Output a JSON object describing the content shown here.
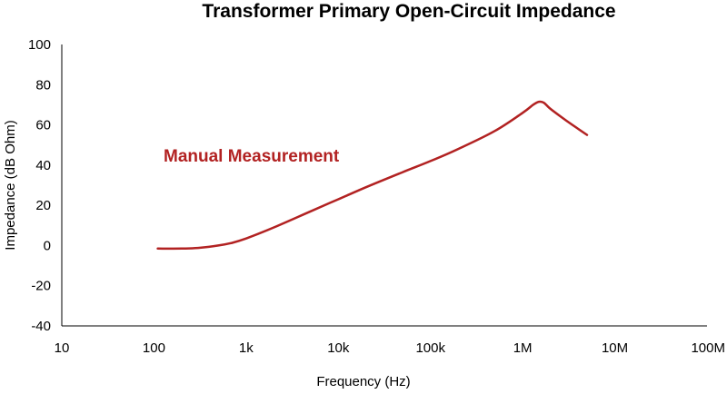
{
  "chart_data": {
    "type": "line",
    "title": "Transformer Primary Open-Circuit Impedance",
    "xlabel": "Frequency (Hz)",
    "ylabel": "Impedance (dB Ohm)",
    "x_scale": "log",
    "xlim": [
      10,
      100000000
    ],
    "ylim": [
      -40,
      100
    ],
    "x_ticks": [
      10,
      100,
      1000,
      10000,
      100000,
      1000000,
      10000000,
      100000000
    ],
    "x_tick_labels": [
      "10",
      "100",
      "1k",
      "10k",
      "100k",
      "1M",
      "10M",
      "100M"
    ],
    "y_ticks": [
      -40,
      -20,
      0,
      20,
      40,
      60,
      80,
      100
    ],
    "y_tick_labels": [
      "-40",
      "-20",
      "0",
      "20",
      "40",
      "60",
      "80",
      "100"
    ],
    "grid": false,
    "annotation": "Manual Measurement",
    "series": [
      {
        "color": "#b22222",
        "x": [
          110,
          200,
          300,
          500,
          700,
          1000,
          2000,
          5000,
          10000,
          20000,
          50000,
          100000,
          200000,
          500000,
          1000000,
          1300000,
          1500000,
          1700000,
          2000000,
          3000000,
          5000000
        ],
        "y": [
          -1.5,
          -1.5,
          -1.2,
          0.0,
          1.3,
          3.5,
          9.0,
          17.0,
          23.0,
          29.0,
          36.5,
          42.0,
          48.0,
          57.0,
          66.0,
          70.0,
          71.5,
          71.0,
          68.0,
          62.0,
          55.0
        ]
      }
    ]
  }
}
